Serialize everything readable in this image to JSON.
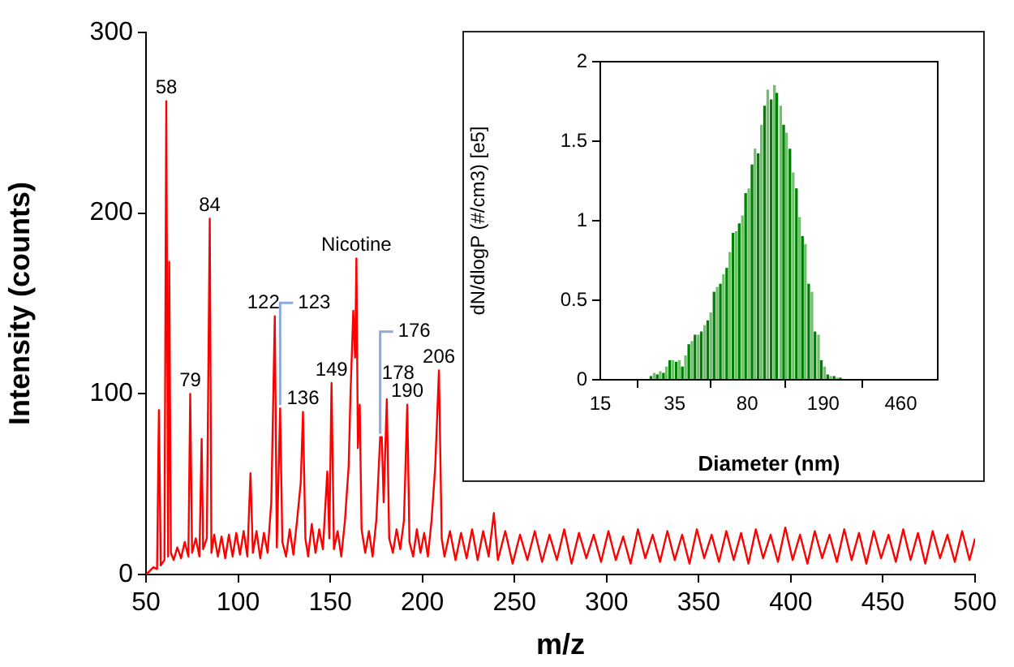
{
  "chart_data": [
    {
      "type": "line",
      "xlabel": "m/z",
      "ylabel": "Intensity (counts)",
      "marker": "none",
      "xlim": [
        50,
        500
      ],
      "ylim": [
        0,
        300
      ],
      "xticks": [
        50,
        100,
        150,
        200,
        250,
        300,
        350,
        400,
        450,
        500
      ],
      "yticks": [
        0,
        100,
        200,
        300
      ],
      "x": [
        50,
        52,
        54,
        56,
        57,
        58,
        60,
        61,
        62,
        62.6,
        63.5,
        65,
        67,
        69,
        71,
        73,
        74,
        75,
        77,
        79,
        80.2,
        81,
        83,
        84.6,
        85.5,
        87,
        89,
        91,
        93,
        95,
        97,
        99,
        101,
        103,
        105,
        106.7,
        108,
        110,
        112,
        114,
        116,
        118,
        119.9,
        121,
        122.8,
        124,
        126,
        128,
        130,
        132,
        134,
        135.2,
        136.5,
        138,
        140,
        142,
        144,
        146,
        148.4,
        149.5,
        150.7,
        152,
        154,
        156,
        158,
        160,
        161,
        162.5,
        163.5,
        164.2,
        165,
        166,
        167,
        169,
        171,
        173,
        175,
        177.1,
        178,
        179,
        180.7,
        182,
        184,
        186,
        188,
        190,
        191.8,
        193,
        195,
        197,
        199,
        201,
        203,
        205,
        207,
        209,
        210.5,
        212,
        215,
        218,
        221,
        224,
        227,
        230,
        233,
        236,
        238.8,
        241,
        245,
        249,
        253,
        257,
        261,
        265,
        269,
        273,
        277,
        281,
        285,
        289,
        293,
        297,
        301,
        305,
        309,
        313,
        317,
        321,
        325,
        329,
        333,
        337,
        341,
        345,
        349,
        353,
        357,
        361,
        365,
        369,
        373,
        377,
        381,
        385,
        389,
        393,
        397,
        401,
        405,
        409,
        413,
        417,
        421,
        425,
        429,
        433,
        437,
        441,
        445,
        449,
        453,
        457,
        461,
        465,
        469,
        473,
        477,
        481,
        485,
        489,
        493,
        497,
        500
      ],
      "series": [
        {
          "color": "#ff0000",
          "values": [
            0,
            2,
            4,
            3,
            91,
            5,
            8,
            262,
            10,
            173,
            12,
            8,
            15,
            9,
            18,
            10,
            100,
            12,
            20,
            10,
            75,
            14,
            20,
            197,
            12,
            22,
            10,
            21,
            9,
            22,
            10,
            23,
            11,
            24,
            10,
            56,
            12,
            24,
            9,
            23,
            12,
            40,
            143,
            15,
            92,
            18,
            10,
            25,
            11,
            30,
            51,
            90,
            20,
            10,
            28,
            12,
            25,
            14,
            57,
            20,
            106,
            14,
            24,
            10,
            30,
            60,
            100,
            146,
            120,
            175,
            70,
            94,
            25,
            12,
            24,
            10,
            30,
            76,
            76,
            40,
            97,
            20,
            12,
            25,
            14,
            30,
            94,
            18,
            10,
            25,
            12,
            23,
            10,
            30,
            60,
            113,
            20,
            10,
            24,
            8,
            23,
            9,
            25,
            8,
            24,
            10,
            34,
            8,
            24,
            6,
            22,
            8,
            24,
            7,
            22,
            8,
            25,
            6,
            23,
            9,
            22,
            7,
            24,
            8,
            21,
            6,
            25,
            9,
            22,
            7,
            24,
            8,
            22,
            6,
            25,
            9,
            22,
            7,
            24,
            8,
            23,
            6,
            25,
            9,
            22,
            7,
            26,
            8,
            22,
            6,
            24,
            9,
            22,
            7,
            25,
            8,
            23,
            6,
            24,
            9,
            22,
            7,
            25,
            8,
            23,
            6,
            24,
            9,
            22,
            7,
            24,
            8,
            20
          ]
        }
      ],
      "annotations": [
        {
          "text": "58",
          "x": 61,
          "y": 262
        },
        {
          "text": "79",
          "x": 74,
          "y": 100
        },
        {
          "text": "84",
          "x": 84.6,
          "y": 197
        },
        {
          "text": "122",
          "x": 119.9,
          "y": 143
        },
        {
          "text": "123",
          "x": 122.8,
          "y": 92
        },
        {
          "text": "136",
          "x": 135.2,
          "y": 90
        },
        {
          "text": "149",
          "x": 150.7,
          "y": 106
        },
        {
          "text": "Nicotine",
          "x": 164.2,
          "y": 175
        },
        {
          "text": "176",
          "x": 177.1,
          "y": 76
        },
        {
          "text": "178",
          "x": 180.7,
          "y": 97
        },
        {
          "text": "190",
          "x": 191.8,
          "y": 94
        },
        {
          "text": "206",
          "x": 209,
          "y": 113
        }
      ]
    },
    {
      "type": "bar",
      "xlabel": "Diameter (nm)",
      "ylabel": "dN/dlogP (#/cm3) [e5]",
      "log": "x",
      "xlim": [
        15,
        700
      ],
      "ylim": [
        0,
        2
      ],
      "xticks": [
        15,
        35,
        80,
        190,
        460
      ],
      "yticks": [
        0,
        0.5,
        1,
        1.5,
        2
      ],
      "x": [
        26.7,
        27.7,
        28.7,
        29.7,
        30.8,
        31.9,
        33.1,
        34.3,
        35.6,
        36.9,
        38.2,
        39.6,
        41.1,
        42.6,
        44.1,
        45.8,
        47.4,
        49.2,
        51.0,
        52.8,
        54.8,
        56.8,
        58.9,
        61.0,
        63.3,
        65.6,
        68.0,
        70.5,
        73.0,
        75.7,
        78.5,
        81.4,
        84.4,
        87.4,
        90.6,
        94.0,
        97.4,
        101,
        105,
        109,
        112,
        117,
        121,
        125,
        130,
        135,
        140,
        145,
        150,
        155,
        161,
        167,
        173,
        180,
        186,
        193,
        200,
        207,
        215,
        223,
        231
      ],
      "values": [
        0.02,
        0.04,
        0.03,
        0.05,
        0.04,
        0.08,
        0.12,
        0.12,
        0.11,
        0.12,
        0.08,
        0.15,
        0.22,
        0.24,
        0.28,
        0.28,
        0.3,
        0.34,
        0.37,
        0.42,
        0.55,
        0.58,
        0.6,
        0.66,
        0.7,
        0.8,
        0.92,
        0.93,
        0.98,
        1.03,
        1.17,
        1.2,
        1.35,
        1.45,
        1.42,
        1.6,
        1.72,
        1.82,
        1.76,
        1.85,
        1.8,
        1.72,
        1.6,
        1.55,
        1.45,
        1.3,
        1.2,
        1.02,
        0.9,
        0.85,
        0.6,
        0.55,
        0.3,
        0.28,
        0.12,
        0.08,
        0.03,
        0.02,
        0.02,
        0.01,
        0.01
      ],
      "colors": [
        "#008000",
        "#70c070",
        "#008000",
        "#70c070",
        "#008000",
        "#70c070",
        "#008000",
        "#70c070",
        "#008000",
        "#70c070",
        "#008000",
        "#70c070",
        "#008000",
        "#70c070",
        "#008000",
        "#70c070",
        "#008000",
        "#70c070",
        "#008000",
        "#70c070",
        "#008000",
        "#70c070",
        "#008000",
        "#70c070",
        "#008000",
        "#70c070",
        "#008000",
        "#70c070",
        "#008000",
        "#70c070",
        "#008000",
        "#70c070",
        "#008000",
        "#70c070",
        "#008000",
        "#70c070",
        "#008000",
        "#70c070",
        "#008000",
        "#70c070",
        "#008000",
        "#70c070",
        "#008000",
        "#70c070",
        "#008000",
        "#70c070",
        "#008000",
        "#70c070",
        "#008000",
        "#70c070",
        "#008000",
        "#70c070",
        "#008000",
        "#70c070",
        "#008000",
        "#70c070",
        "#008000",
        "#70c070",
        "#008000",
        "#70c070",
        "#008000"
      ]
    }
  ]
}
